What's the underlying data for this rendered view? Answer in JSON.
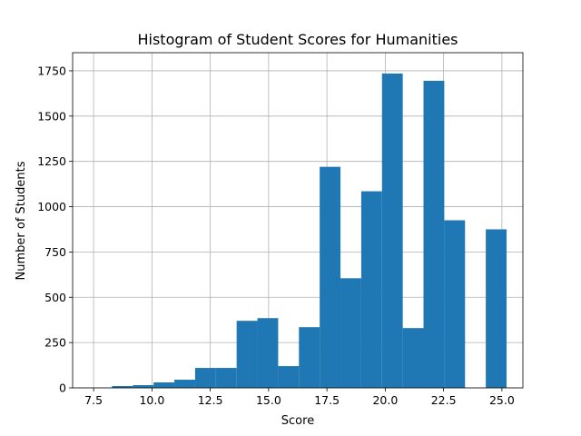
{
  "chart_data": {
    "type": "bar",
    "title": "Histogram of Student Scores for Humanities",
    "xlabel": "Score",
    "ylabel": "Number of Students",
    "xlim": [
      6.6,
      25.9
    ],
    "ylim": [
      0,
      1850
    ],
    "xticks": [
      7.5,
      10.0,
      12.5,
      15.0,
      17.5,
      20.0,
      22.5,
      25.0
    ],
    "xtick_labels": [
      "7.5",
      "10.0",
      "12.5",
      "15.0",
      "17.5",
      "20.0",
      "22.5",
      "25.0"
    ],
    "yticks": [
      0,
      250,
      500,
      750,
      1000,
      1250,
      1500,
      1750
    ],
    "ytick_labels": [
      "0",
      "250",
      "500",
      "750",
      "1000",
      "1250",
      "1500",
      "1750"
    ],
    "grid": true,
    "bar_color": "#1f77b4",
    "bins": [
      {
        "x0": 7.4,
        "x1": 8.29,
        "value": 0
      },
      {
        "x0": 8.29,
        "x1": 9.18,
        "value": 10
      },
      {
        "x0": 9.18,
        "x1": 10.07,
        "value": 15
      },
      {
        "x0": 10.07,
        "x1": 10.96,
        "value": 30
      },
      {
        "x0": 10.96,
        "x1": 11.85,
        "value": 45
      },
      {
        "x0": 11.85,
        "x1": 12.74,
        "value": 110
      },
      {
        "x0": 12.74,
        "x1": 13.63,
        "value": 110
      },
      {
        "x0": 13.63,
        "x1": 14.52,
        "value": 370
      },
      {
        "x0": 14.52,
        "x1": 15.41,
        "value": 385
      },
      {
        "x0": 15.41,
        "x1": 16.3,
        "value": 120
      },
      {
        "x0": 16.3,
        "x1": 17.19,
        "value": 335
      },
      {
        "x0": 17.19,
        "x1": 18.08,
        "value": 1220
      },
      {
        "x0": 18.08,
        "x1": 18.97,
        "value": 605
      },
      {
        "x0": 18.97,
        "x1": 19.86,
        "value": 1085
      },
      {
        "x0": 19.86,
        "x1": 20.75,
        "value": 1735
      },
      {
        "x0": 20.75,
        "x1": 21.64,
        "value": 330
      },
      {
        "x0": 21.64,
        "x1": 22.53,
        "value": 1695
      },
      {
        "x0": 22.53,
        "x1": 23.42,
        "value": 925
      },
      {
        "x0": 23.42,
        "x1": 24.31,
        "value": 0
      },
      {
        "x0": 24.31,
        "x1": 25.2,
        "value": 875
      }
    ]
  }
}
